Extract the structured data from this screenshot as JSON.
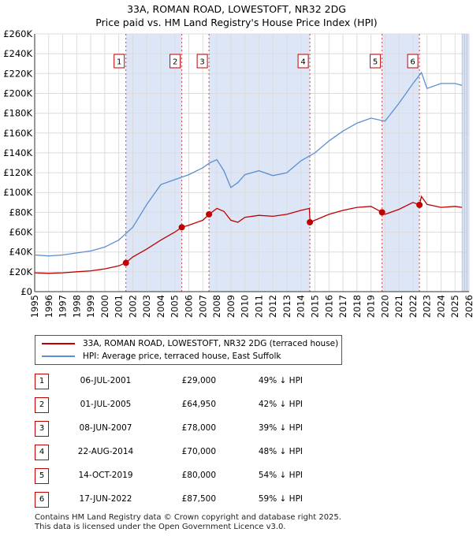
{
  "header": {
    "title": "33A, ROMAN ROAD, LOWESTOFT, NR32 2DG",
    "subtitle": "Price paid vs. HM Land Registry's House Price Index (HPI)"
  },
  "colors": {
    "property": "#c00000",
    "hpi": "#5b8fd0",
    "shade": "#dde6f7",
    "grid": "#dcdcdc"
  },
  "chart_data": {
    "type": "line",
    "title": "33A, ROMAN ROAD, LOWESTOFT, NR32 2DG",
    "subtitle": "Price paid vs. HM Land Registry's House Price Index (HPI)",
    "xlabel": "",
    "ylabel": "",
    "xlim": [
      1995,
      2026
    ],
    "ylim": [
      0,
      260000
    ],
    "y_ticks": [
      0,
      20000,
      40000,
      60000,
      80000,
      100000,
      120000,
      140000,
      160000,
      180000,
      200000,
      220000,
      240000,
      260000
    ],
    "y_tick_labels": [
      "£0",
      "£20K",
      "£40K",
      "£60K",
      "£80K",
      "£100K",
      "£120K",
      "£140K",
      "£160K",
      "£180K",
      "£200K",
      "£220K",
      "£240K",
      "£260K"
    ],
    "x_ticks": [
      1995,
      1996,
      1997,
      1998,
      1999,
      2000,
      2001,
      2002,
      2003,
      2004,
      2005,
      2006,
      2007,
      2008,
      2009,
      2010,
      2011,
      2012,
      2013,
      2014,
      2015,
      2016,
      2017,
      2018,
      2019,
      2020,
      2021,
      2022,
      2023,
      2024,
      2025,
      2026
    ],
    "x_tick_labels": [
      "1995",
      "1996",
      "1997",
      "1998",
      "1999",
      "2000",
      "2001",
      "2002",
      "2003",
      "2004",
      "2005",
      "2006",
      "2007",
      "2008",
      "2009",
      "2010",
      "2011",
      "2012",
      "2013",
      "2014",
      "2015",
      "2016",
      "2017",
      "2018",
      "2019",
      "2020",
      "2021",
      "2022",
      "2023",
      "2024",
      "2025",
      "2026"
    ],
    "grid": true,
    "legend_position": "below",
    "series": [
      {
        "name": "33A, ROMAN ROAD, LOWESTOFT, NR32 2DG (terraced house)",
        "x": [
          1995.0,
          1996.0,
          1997.0,
          1998.0,
          1999.0,
          2000.0,
          2001.0,
          2001.5,
          2002.0,
          2003.0,
          2004.0,
          2005.0,
          2005.5,
          2006.0,
          2007.0,
          2007.45,
          2008.0,
          2008.5,
          2009.0,
          2009.5,
          2010.0,
          2011.0,
          2012.0,
          2013.0,
          2014.0,
          2014.6,
          2014.65,
          2015.0,
          2016.0,
          2017.0,
          2018.0,
          2019.0,
          2019.8,
          2020.0,
          2021.0,
          2022.0,
          2022.46,
          2022.6,
          2023.0,
          2024.0,
          2025.0,
          2025.5
        ],
        "y": [
          19000,
          18500,
          19000,
          20000,
          21000,
          23000,
          26000,
          29000,
          35000,
          43000,
          52000,
          60000,
          64950,
          67000,
          72000,
          78000,
          84000,
          81000,
          72000,
          70000,
          75000,
          77000,
          76000,
          78000,
          82000,
          84000,
          70000,
          72000,
          78000,
          82000,
          85000,
          86000,
          80000,
          78000,
          83000,
          90000,
          87500,
          96000,
          88000,
          85000,
          86000,
          85000
        ]
      },
      {
        "name": "HPI: Average price, terraced house, East Suffolk",
        "x": [
          1995.0,
          1996.0,
          1997.0,
          1998.0,
          1999.0,
          2000.0,
          2001.0,
          2002.0,
          2003.0,
          2004.0,
          2005.0,
          2006.0,
          2007.0,
          2007.5,
          2008.0,
          2008.5,
          2009.0,
          2009.5,
          2010.0,
          2011.0,
          2012.0,
          2013.0,
          2014.0,
          2015.0,
          2016.0,
          2017.0,
          2018.0,
          2019.0,
          2020.0,
          2021.0,
          2022.0,
          2022.6,
          2023.0,
          2024.0,
          2025.0,
          2025.5
        ],
        "y": [
          37000,
          36000,
          37000,
          39000,
          41000,
          45000,
          52000,
          65000,
          88000,
          108000,
          113000,
          118000,
          125000,
          130000,
          133000,
          122000,
          105000,
          110000,
          118000,
          122000,
          117000,
          120000,
          132000,
          140000,
          152000,
          162000,
          170000,
          175000,
          172000,
          190000,
          210000,
          221000,
          205000,
          210000,
          210000,
          208000
        ]
      }
    ],
    "annotations": [
      {
        "id": "1",
        "x": 2001.51,
        "y": 29000
      },
      {
        "id": "2",
        "x": 2005.5,
        "y": 64950
      },
      {
        "id": "3",
        "x": 2007.44,
        "y": 78000
      },
      {
        "id": "4",
        "x": 2014.64,
        "y": 70000
      },
      {
        "id": "5",
        "x": 2019.79,
        "y": 80000
      },
      {
        "id": "6",
        "x": 2022.46,
        "y": 87500
      }
    ],
    "shaded_ranges": [
      [
        2001.51,
        2005.5
      ],
      [
        2007.44,
        2014.64
      ],
      [
        2019.79,
        2022.46
      ],
      [
        2025.5,
        2026.0
      ]
    ]
  },
  "legend": {
    "property_label": "33A, ROMAN ROAD, LOWESTOFT, NR32 2DG (terraced house)",
    "hpi_label": "HPI: Average price, terraced house, East Suffolk"
  },
  "sales": [
    {
      "id": "1",
      "date": "06-JUL-2001",
      "price": "£29,000",
      "hpi": "49% ↓ HPI"
    },
    {
      "id": "2",
      "date": "01-JUL-2005",
      "price": "£64,950",
      "hpi": "42% ↓ HPI"
    },
    {
      "id": "3",
      "date": "08-JUN-2007",
      "price": "£78,000",
      "hpi": "39% ↓ HPI"
    },
    {
      "id": "4",
      "date": "22-AUG-2014",
      "price": "£70,000",
      "hpi": "48% ↓ HPI"
    },
    {
      "id": "5",
      "date": "14-OCT-2019",
      "price": "£80,000",
      "hpi": "54% ↓ HPI"
    },
    {
      "id": "6",
      "date": "17-JUN-2022",
      "price": "£87,500",
      "hpi": "59% ↓ HPI"
    }
  ],
  "footer": {
    "line1": "Contains HM Land Registry data © Crown copyright and database right 2025.",
    "line2": "This data is licensed under the Open Government Licence v3.0."
  }
}
